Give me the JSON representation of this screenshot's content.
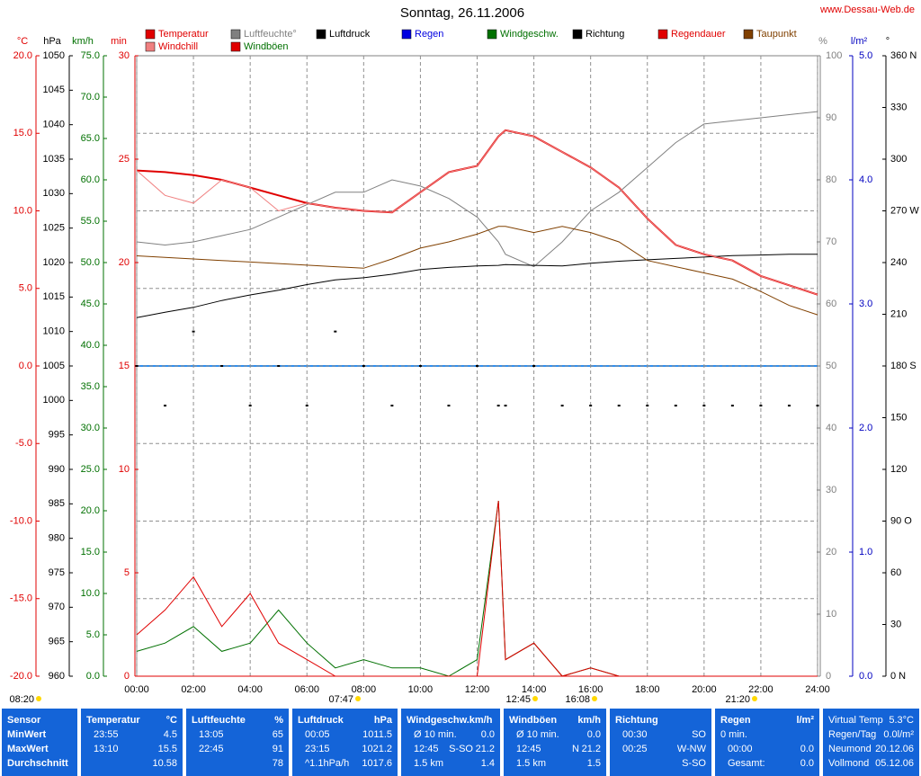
{
  "chart_data": {
    "type": "line",
    "title": "Sonntag, 26.11.2006",
    "source": "www.Dessau-Web.de",
    "x": [
      0,
      1,
      2,
      3,
      4,
      5,
      6,
      7,
      8,
      9,
      10,
      11,
      12,
      12.75,
      13,
      14,
      15,
      16,
      17,
      18,
      19,
      20,
      21,
      22,
      23,
      24
    ],
    "xlim": [
      0,
      24
    ],
    "xticks": [
      {
        "value": 0,
        "label": "00:00"
      },
      {
        "value": 2,
        "label": "02:00"
      },
      {
        "value": 4,
        "label": "04:00"
      },
      {
        "value": 6,
        "label": "06:00"
      },
      {
        "value": 8,
        "label": "08:00"
      },
      {
        "value": 10,
        "label": "10:00"
      },
      {
        "value": 12,
        "label": "12:00"
      },
      {
        "value": 14,
        "label": "14:00"
      },
      {
        "value": 16,
        "label": "16:00"
      },
      {
        "value": 18,
        "label": "18:00"
      },
      {
        "value": 20,
        "label": "20:00"
      },
      {
        "value": 22,
        "label": "22:00"
      },
      {
        "value": 24,
        "label": "24:00"
      }
    ],
    "grid": true,
    "axes": [
      {
        "label": "°C",
        "side": "left",
        "color": "#e00000",
        "lim": [
          -20,
          20
        ],
        "ticks": [
          {
            "value": 20,
            "label": "20.0"
          },
          {
            "value": 15,
            "label": "15.0"
          },
          {
            "value": 10,
            "label": "10.0"
          },
          {
            "value": 5,
            "label": "5.0"
          },
          {
            "value": 0,
            "label": "0.0"
          },
          {
            "value": -5,
            "label": "-5.0"
          },
          {
            "value": -10,
            "label": "-10.0"
          },
          {
            "value": -15,
            "label": "-15.0"
          },
          {
            "value": -20,
            "label": "-20.0"
          }
        ]
      },
      {
        "label": "hPa",
        "side": "left",
        "color": "#000000",
        "lim": [
          960,
          1050
        ],
        "ticks": [
          1050,
          1045,
          1040,
          1035,
          1030,
          1025,
          1020,
          1015,
          1010,
          1005,
          1000,
          995,
          990,
          985,
          980,
          975,
          970,
          965,
          960
        ]
      },
      {
        "label": "km/h",
        "side": "left",
        "color": "#007000",
        "lim": [
          0,
          75
        ],
        "ticks": [
          {
            "value": 75,
            "label": "75.0"
          },
          {
            "value": 70,
            "label": "70.0"
          },
          {
            "value": 65,
            "label": "65.0"
          },
          {
            "value": 60,
            "label": "60.0"
          },
          {
            "value": 55,
            "label": "55.0"
          },
          {
            "value": 50,
            "label": "50.0"
          },
          {
            "value": 45,
            "label": "45.0"
          },
          {
            "value": 40,
            "label": "40.0"
          },
          {
            "value": 35,
            "label": "35.0"
          },
          {
            "value": 30,
            "label": "30.0"
          },
          {
            "value": 25,
            "label": "25.0"
          },
          {
            "value": 20,
            "label": "20.0"
          },
          {
            "value": 15,
            "label": "15.0"
          },
          {
            "value": 10,
            "label": "10.0"
          },
          {
            "value": 5,
            "label": "5.0"
          },
          {
            "value": 0,
            "label": "0.0"
          }
        ]
      },
      {
        "label": "min",
        "side": "left",
        "color": "#e00000",
        "lim": [
          0,
          30
        ],
        "ticks": [
          30,
          25,
          20,
          15,
          10,
          5,
          0
        ]
      },
      {
        "label": "%",
        "side": "right",
        "color": "#808080",
        "lim": [
          0,
          100
        ],
        "ticks": [
          100,
          90,
          80,
          70,
          60,
          50,
          40,
          30,
          20,
          10,
          0
        ]
      },
      {
        "label": "l/m²",
        "side": "right",
        "color": "#0000c0",
        "lim": [
          0,
          5
        ],
        "ticks": [
          {
            "value": 5,
            "label": "5.0"
          },
          {
            "value": 4,
            "label": "4.0"
          },
          {
            "value": 3,
            "label": "3.0"
          },
          {
            "value": 2,
            "label": "2.0"
          },
          {
            "value": 1,
            "label": "1.0"
          },
          {
            "value": 0,
            "label": "0.0"
          }
        ]
      },
      {
        "label": "°",
        "side": "right",
        "color": "#000000",
        "lim": [
          0,
          360
        ],
        "ticks": [
          {
            "value": 360,
            "label": "360 N"
          },
          330,
          300,
          {
            "value": 270,
            "label": "270 W"
          },
          240,
          210,
          {
            "value": 180,
            "label": "180 S"
          },
          150,
          120,
          {
            "value": 90,
            "label": "90 O"
          },
          60,
          30,
          {
            "value": 0,
            "label": "0 N"
          }
        ]
      }
    ],
    "series": [
      {
        "name": "Temperatur",
        "color": "#e00000",
        "text_color": "#e00000",
        "axis": 0,
        "values": [
          12.6,
          12.5,
          12.3,
          12.0,
          11.5,
          11.0,
          10.5,
          10.2,
          10.0,
          9.9,
          11.2,
          12.5,
          12.9,
          14.8,
          15.2,
          14.8,
          13.8,
          12.8,
          11.5,
          9.5,
          7.8,
          7.2,
          6.8,
          5.8,
          5.2,
          4.6
        ]
      },
      {
        "name": "Luftfeuchte°",
        "color": "#808080",
        "text_color": "#808080",
        "axis": 4,
        "values": [
          70,
          69.5,
          70,
          71,
          72,
          74,
          76,
          78,
          78,
          80,
          79,
          77,
          74,
          70,
          68,
          66,
          70,
          75,
          78,
          82,
          86,
          89,
          89.5,
          90,
          90.5,
          91
        ]
      },
      {
        "name": "Luftdruck",
        "color": "#000000",
        "text_color": "#000000",
        "axis": 1,
        "values": [
          1012,
          1012.8,
          1013.5,
          1014.5,
          1015.3,
          1016,
          1016.8,
          1017.5,
          1017.8,
          1018.3,
          1019,
          1019.3,
          1019.5,
          1019.6,
          1019.7,
          1019.6,
          1019.5,
          1019.9,
          1020.2,
          1020.4,
          1020.6,
          1020.8,
          1021,
          1021.1,
          1021.2,
          1021.2
        ]
      },
      {
        "name": "Regen",
        "color": "#0000e0",
        "text_color": "#0000e0",
        "axis": 5,
        "values": [
          0,
          0,
          0,
          0,
          0,
          0,
          0,
          0,
          0,
          0,
          0,
          0,
          0,
          0,
          0,
          0,
          0,
          0,
          0,
          0,
          0,
          0,
          0,
          0,
          0,
          0
        ]
      },
      {
        "name": "Windgeschw.",
        "color": "#007000",
        "text_color": "#007000",
        "axis": 2,
        "values": [
          3,
          4,
          6,
          3,
          4,
          8,
          4,
          1,
          2,
          1,
          1,
          0,
          2,
          21.2,
          2,
          4,
          0,
          1,
          0,
          0,
          0,
          0,
          0,
          0,
          0,
          0
        ]
      },
      {
        "name": "Richtung",
        "color": "#000000",
        "text_color": "#000000",
        "axis": 6,
        "style": "dots",
        "values": [
          180,
          157,
          200,
          180,
          157,
          180,
          157,
          200,
          180,
          157,
          180,
          157,
          180,
          157,
          157,
          180,
          157,
          157,
          157,
          157,
          157,
          157,
          157,
          157,
          157,
          157
        ]
      },
      {
        "name": "Regendauer",
        "color": "#e00000",
        "text_color": "#e00000",
        "axis": 3,
        "values": [
          0,
          0,
          0,
          0,
          0,
          0,
          0,
          0,
          0,
          0,
          0,
          0,
          0,
          0,
          0,
          0,
          0,
          0,
          0,
          0,
          0,
          0,
          0,
          0,
          0,
          0
        ]
      },
      {
        "name": "Taupunkt",
        "color": "#804000",
        "text_color": "#804000",
        "axis": 0,
        "values": [
          7.1,
          7.0,
          6.9,
          6.8,
          6.7,
          6.6,
          6.5,
          6.4,
          6.3,
          6.9,
          7.6,
          8.0,
          8.5,
          9.0,
          9.0,
          8.6,
          9.0,
          8.6,
          8.0,
          6.8,
          6.4,
          6.0,
          5.6,
          4.8,
          3.9,
          3.3
        ]
      },
      {
        "name": "Windchill",
        "color": "#f08080",
        "text_color": "#e00000",
        "axis": 0,
        "values": [
          12.6,
          11.0,
          10.5,
          12.0,
          11.5,
          10.0,
          10.5,
          10.2,
          10.0,
          9.9,
          11.2,
          12.5,
          12.9,
          14.8,
          15.2,
          14.8,
          13.8,
          12.8,
          11.5,
          9.5,
          7.8,
          7.2,
          6.8,
          5.8,
          5.2,
          4.6
        ]
      },
      {
        "name": "Windböen",
        "color": "#e00000",
        "text_color": "#007000",
        "axis": 2,
        "values": [
          5,
          8,
          12,
          6,
          10,
          4,
          2,
          0,
          0,
          0,
          0,
          0,
          0,
          21.2,
          2,
          4,
          0,
          1,
          0,
          0,
          0,
          0,
          0,
          0,
          0,
          0
        ]
      }
    ],
    "annotations": [
      "08:20",
      "07:47",
      "12:45",
      "16:08",
      "21:20"
    ]
  },
  "table": {
    "panels": [
      {
        "title": "Sensor",
        "rows": [
          [
            "MinWert"
          ],
          [
            "MaxWert"
          ],
          [
            "Durchschnitt"
          ]
        ]
      },
      {
        "title": "Temperatur",
        "unit": "°C",
        "rows": [
          [
            "23:55",
            "4.5"
          ],
          [
            "13:10",
            "15.5"
          ],
          [
            "10.58"
          ]
        ]
      },
      {
        "title": "Luftfeuchte",
        "unit": "%",
        "rows": [
          [
            "13:05",
            "65"
          ],
          [
            "22:45",
            "91"
          ],
          [
            "78"
          ]
        ]
      },
      {
        "title": "Luftdruck",
        "unit": "hPa",
        "rows": [
          [
            "00:05",
            "1011.5"
          ],
          [
            "23:15",
            "1021.2"
          ],
          [
            "^1.1hPa/h",
            "1017.6"
          ]
        ]
      },
      {
        "title": "Windgeschw.km/h",
        "rows": [
          [
            "Ø 10 min.",
            "0.0"
          ],
          [
            "12:45",
            "S-SO",
            "21.2"
          ],
          [
            "1.5 km",
            "1.4"
          ]
        ]
      },
      {
        "title": "Windböen",
        "unit": "km/h",
        "rows": [
          [
            "Ø 10 min.",
            "0.0"
          ],
          [
            "12:45",
            "N",
            "21.2"
          ],
          [
            "1.5 km",
            "1.5"
          ]
        ]
      },
      {
        "title": "Richtung",
        "rows": [
          [
            "00:30",
            "SO"
          ],
          [
            "00:25",
            "W-NW"
          ],
          [
            "S-SO"
          ]
        ]
      },
      {
        "title": "Regen",
        "unit": "l/m²",
        "rows": [
          [
            "0 min."
          ],
          [
            "00:00",
            "0.0"
          ],
          [
            "Gesamt:",
            "0.0"
          ]
        ]
      },
      {
        "rows": [
          [
            "Virtual Temp",
            "5.3°C"
          ],
          [
            "Regen/Tag",
            "0.0l/m²"
          ],
          [
            "Neumond",
            "20.12.06"
          ],
          [
            "Vollmond",
            "05.12.06"
          ]
        ]
      }
    ]
  }
}
